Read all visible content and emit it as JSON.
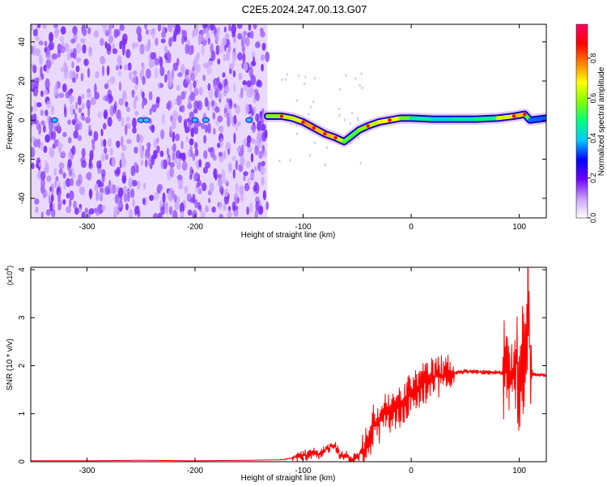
{
  "figure": {
    "title": "C2E5.2024.247.00.13.G07"
  },
  "chart_data": [
    {
      "type": "heatmap",
      "name": "spectrogram",
      "xlabel": "Height of straight line (km)",
      "ylabel": "Frequency (Hz)",
      "xlim": [
        -352,
        125
      ],
      "ylim": [
        -50,
        49
      ],
      "x_ticks": [
        -300,
        -200,
        -100,
        0,
        100
      ],
      "y_ticks": [
        -40,
        -20,
        0,
        20,
        40
      ],
      "colorbar": {
        "label": "Normalized spectral amplitude",
        "range": [
          0,
          0.97
        ],
        "ticks": [
          "0.0",
          "0.2",
          "0.4",
          "0.6",
          "0.8"
        ],
        "tick_values": [
          0,
          0.2,
          0.4,
          0.6,
          0.8
        ],
        "colormap": [
          "#ffffff",
          "#c8a0ff",
          "#6f00ff",
          "#0000ff",
          "#00c8ff",
          "#00ff80",
          "#80ff00",
          "#ffff00",
          "#ff8000",
          "#ff0000",
          "#ff0060"
        ]
      },
      "noise_region": {
        "x_range": [
          -352,
          -133
        ],
        "description_color": "#8a3cff"
      },
      "signal_trace": {
        "x": [
          -133,
          -120,
          -110,
          -100,
          -90,
          -80,
          -70,
          -62,
          -55,
          -48,
          -40,
          -30,
          -20,
          -10,
          0,
          20,
          40,
          60,
          80,
          95,
          105,
          110,
          125
        ],
        "y": [
          2,
          2,
          1,
          -1,
          -4,
          -7,
          -9,
          -11,
          -8,
          -5,
          -3,
          -1,
          0,
          1,
          1,
          0.5,
          0.5,
          0.5,
          1,
          2,
          3,
          0,
          1
        ],
        "amplitude": [
          0.5,
          0.7,
          0.6,
          0.75,
          0.8,
          0.7,
          0.8,
          0.5,
          0.6,
          0.5,
          0.7,
          0.6,
          0.8,
          0.6,
          0.55,
          0.4,
          0.45,
          0.45,
          0.55,
          0.8,
          0.7,
          0.4,
          0.3
        ]
      },
      "noise_line_dots": {
        "x": [
          -330,
          -250,
          -245,
          -200,
          -190,
          -150
        ],
        "y": [
          0,
          0,
          0,
          0,
          0,
          0
        ]
      }
    },
    {
      "type": "line",
      "name": "snr",
      "xlabel": "Height of straight line (km)",
      "ylabel": "SNR (10 * v/v)",
      "scale_note": "(x10",
      "scale_exp": "4",
      "xlim": [
        -352,
        125
      ],
      "ylim": [
        0,
        4.05
      ],
      "x_ticks": [
        -300,
        -200,
        -100,
        0,
        100
      ],
      "y_ticks": [
        0,
        1,
        2,
        3,
        4
      ],
      "color": "#ff0000",
      "series": [
        {
          "x": [
            -352,
            -300,
            -250,
            -200,
            -150,
            -120,
            -105,
            -100,
            -95,
            -90,
            -85,
            -80,
            -75,
            -72,
            -70,
            -65,
            -60,
            -55,
            -50,
            -45,
            -40,
            -35,
            -30,
            -25,
            -20,
            -15,
            -10,
            -5,
            0,
            10,
            20,
            30,
            40,
            50,
            60,
            70,
            80,
            85,
            90,
            95,
            97,
            99,
            101,
            103,
            105,
            107,
            108,
            110,
            112,
            125
          ],
          "values": [
            0.02,
            0.02,
            0.03,
            0.02,
            0.03,
            0.04,
            0.1,
            0.15,
            0.12,
            0.2,
            0.15,
            0.25,
            0.3,
            0.35,
            0.3,
            0.1,
            0.15,
            0.05,
            0.1,
            0.2,
            0.35,
            0.75,
            0.8,
            1.0,
            1.0,
            1.1,
            1.15,
            1.3,
            1.45,
            1.6,
            1.75,
            1.8,
            1.85,
            1.88,
            1.87,
            1.86,
            1.86,
            1.85,
            1.88,
            1.9,
            2.1,
            1.85,
            1.5,
            2.2,
            1.7,
            2.1,
            4.05,
            2.0,
            1.82,
            1.8
          ]
        }
      ]
    }
  ]
}
